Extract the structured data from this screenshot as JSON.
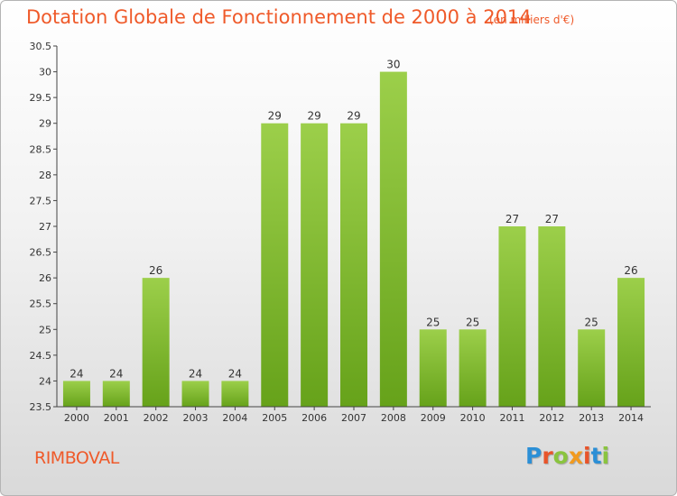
{
  "header": {
    "title": "Dotation Globale de Fonctionnement de 2000 à 2014",
    "subtitle": "(en milliers d'€)"
  },
  "footer": {
    "commune": "RIMBOVAL",
    "logo_text": "Proxiti",
    "logo_colors": [
      "#2b8fd6",
      "#e8542a",
      "#8ac43f",
      "#f29a1e",
      "#e8542a",
      "#2b8fd6",
      "#8ac43f"
    ]
  },
  "chart_data": {
    "type": "bar",
    "categories": [
      "2000",
      "2001",
      "2002",
      "2003",
      "2004",
      "2005",
      "2006",
      "2007",
      "2008",
      "2009",
      "2010",
      "2011",
      "2012",
      "2013",
      "2014"
    ],
    "values": [
      24,
      24,
      26,
      24,
      24,
      29,
      29,
      29,
      30,
      25,
      25,
      27,
      27,
      25,
      26
    ],
    "data_labels": [
      "24",
      "24",
      "26",
      "24",
      "24",
      "29",
      "29",
      "29",
      "30",
      "25",
      "25",
      "27",
      "27",
      "25",
      "26"
    ],
    "yticks": [
      "23.5",
      "24",
      "24.5",
      "25",
      "25.5",
      "26",
      "26.5",
      "27",
      "27.5",
      "28",
      "28.5",
      "29",
      "29.5",
      "30",
      "30.5"
    ],
    "ylim": [
      23.5,
      30.5
    ],
    "xlabel": "",
    "ylabel": "",
    "grid": false,
    "bar_color_top": "#9ccf4a",
    "bar_color_bottom": "#66a21a"
  }
}
